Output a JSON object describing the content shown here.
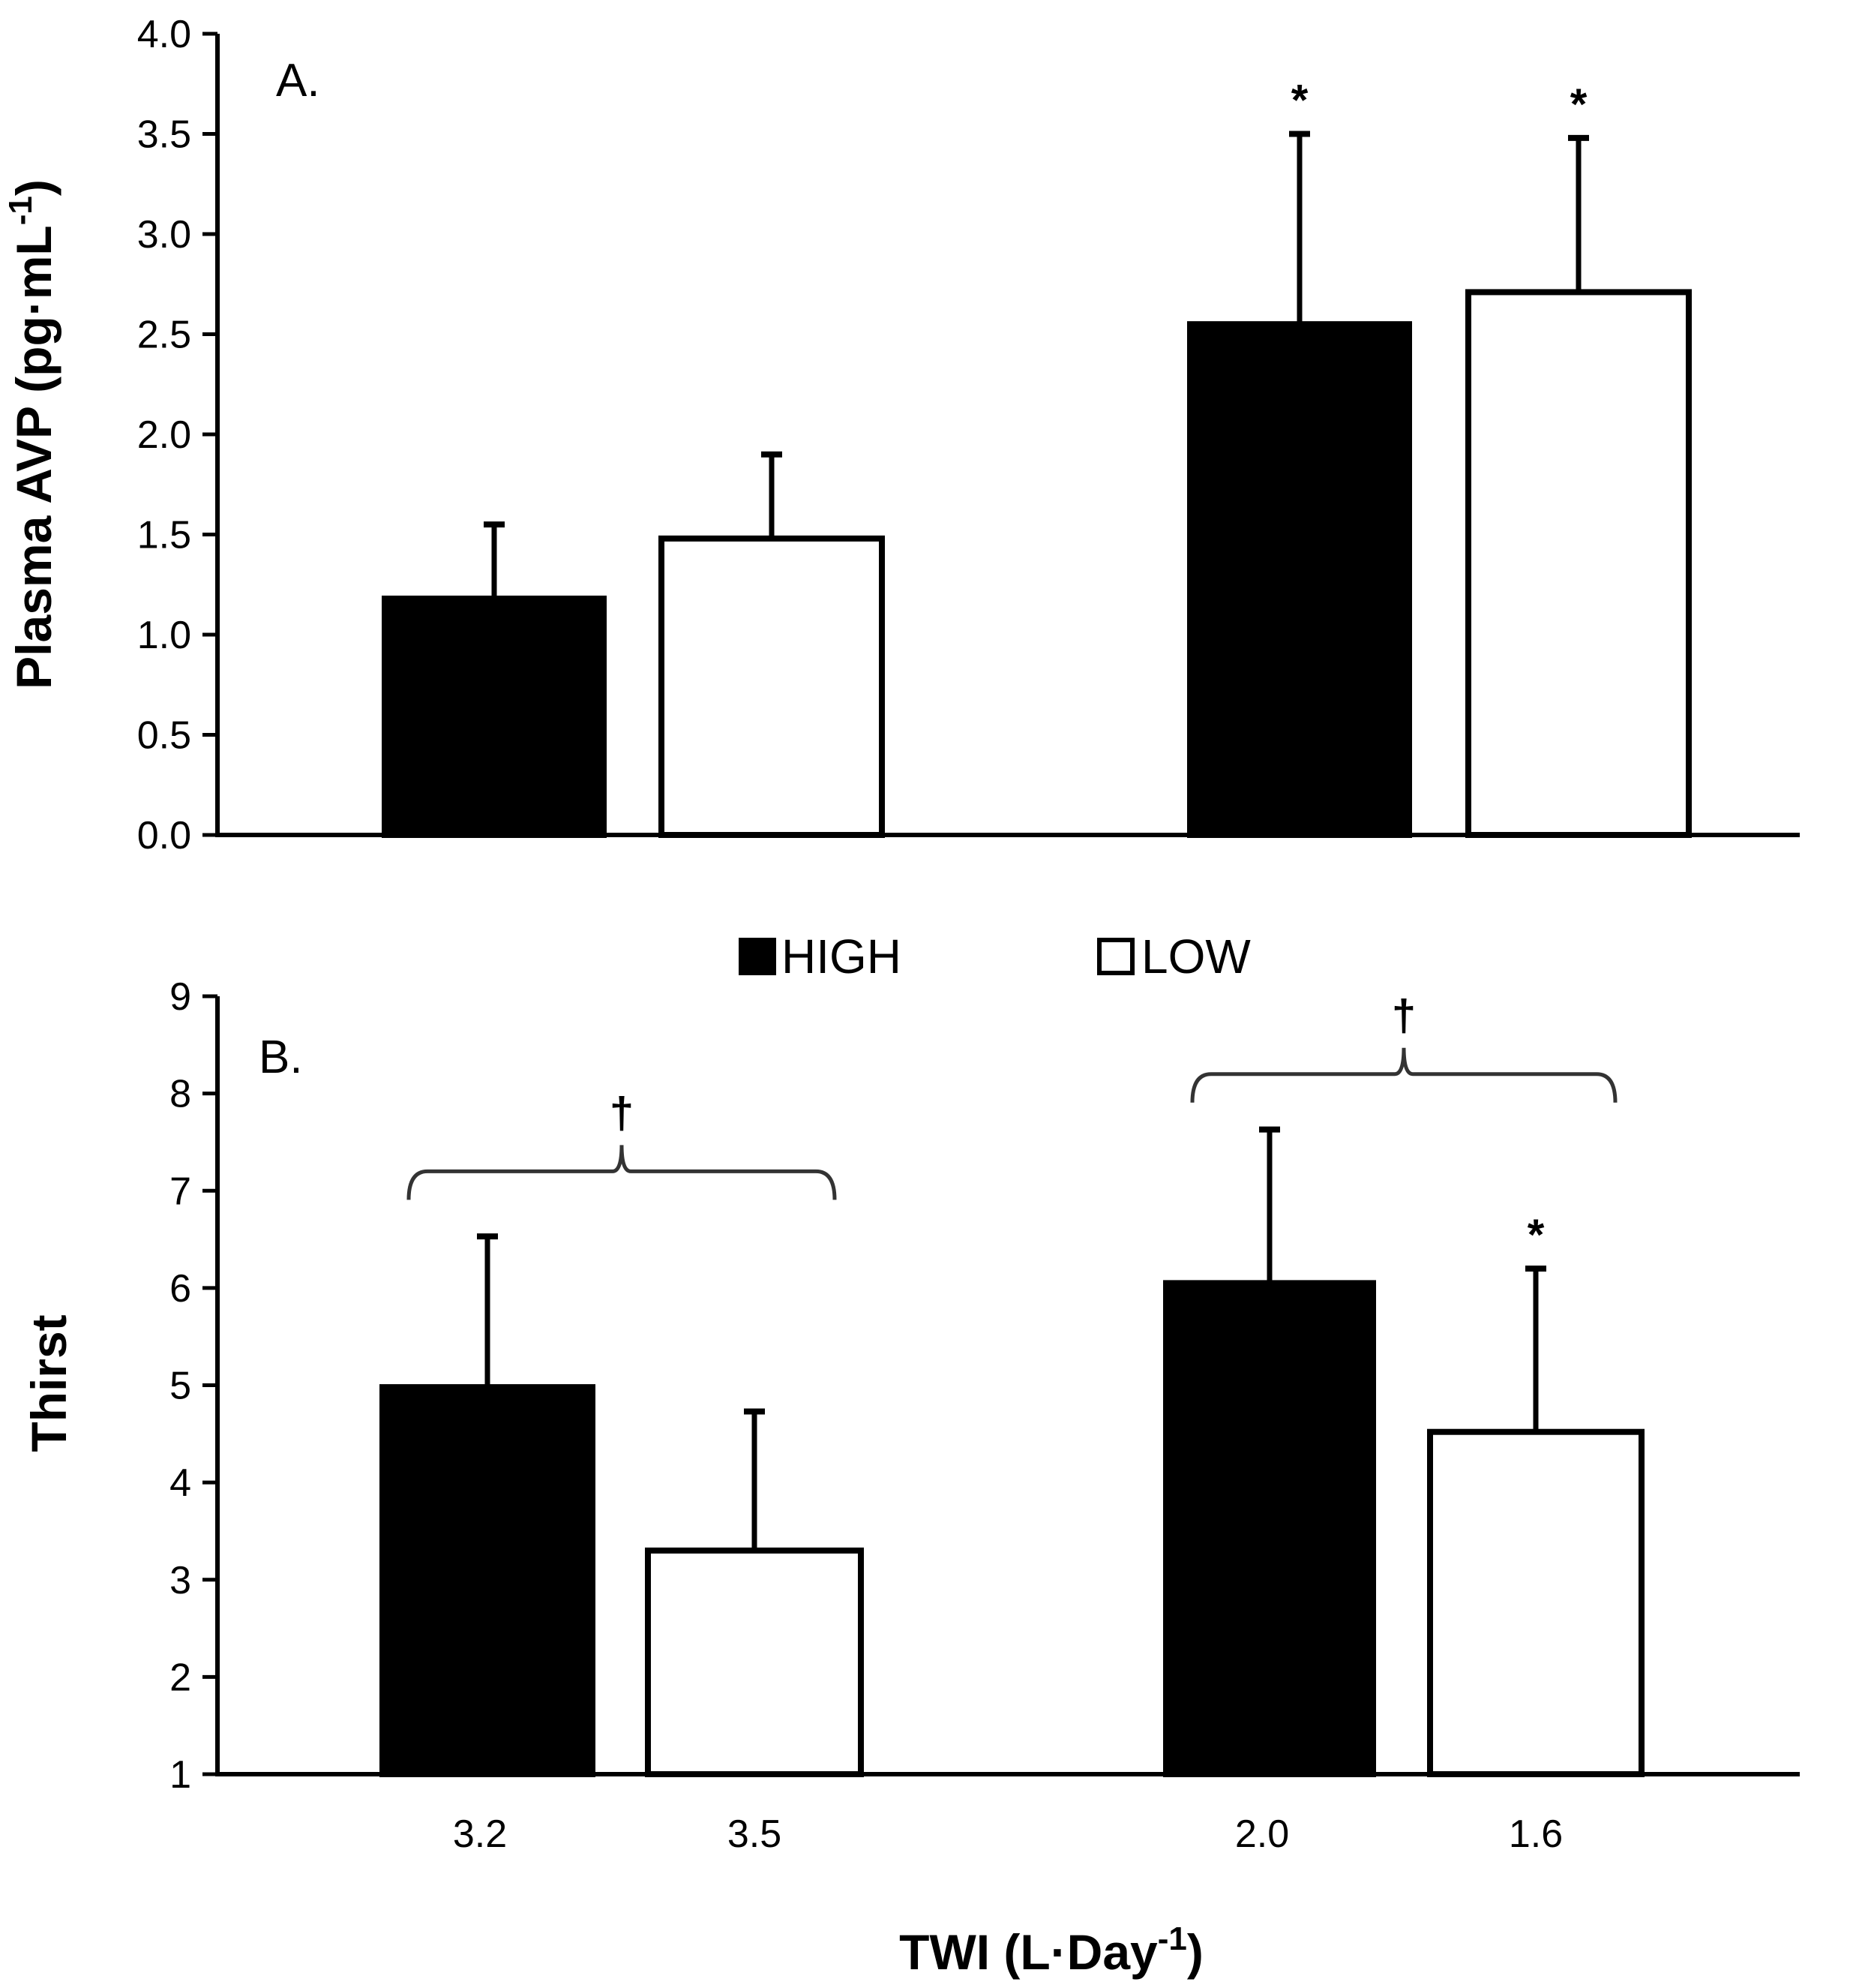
{
  "chart_data": [
    {
      "panel_label": "A.",
      "type": "bar",
      "ylabel": "Plasma AVP (pg·mL",
      "ylabel_sup": "-1",
      "ylabel_end": ")",
      "ylim": [
        0,
        4.0
      ],
      "yticks": [
        "0.0",
        "0.5",
        "1.0",
        "1.5",
        "2.0",
        "2.5",
        "3.0",
        "3.5",
        "4.0"
      ],
      "ytick_values": [
        0,
        0.5,
        1.0,
        1.5,
        2.0,
        2.5,
        3.0,
        3.5,
        4.0
      ],
      "bars": [
        {
          "series": "HIGH",
          "value": 1.18,
          "error": 0.37,
          "marker": ""
        },
        {
          "series": "LOW",
          "value": 1.48,
          "error": 0.42,
          "marker": ""
        },
        {
          "series": "HIGH",
          "value": 2.55,
          "error": 0.95,
          "marker": "*"
        },
        {
          "series": "LOW",
          "value": 2.71,
          "error": 0.77,
          "marker": "*"
        }
      ],
      "brackets": []
    },
    {
      "panel_label": "B.",
      "type": "bar",
      "ylabel": "Thirst",
      "ylim": [
        1,
        9
      ],
      "yticks": [
        "1",
        "2",
        "3",
        "4",
        "5",
        "6",
        "7",
        "8",
        "9"
      ],
      "ytick_values": [
        1,
        2,
        3,
        4,
        5,
        6,
        7,
        8,
        9
      ],
      "bars": [
        {
          "series": "HIGH",
          "value": 4.98,
          "error": 1.55,
          "marker": ""
        },
        {
          "series": "LOW",
          "value": 3.3,
          "error": 1.43,
          "marker": ""
        },
        {
          "series": "HIGH",
          "value": 6.05,
          "error": 1.58,
          "marker": ""
        },
        {
          "series": "LOW",
          "value": 4.52,
          "error": 1.68,
          "marker": "*"
        }
      ],
      "brackets": [
        {
          "from_bar": 0,
          "to_bar": 1,
          "level": 7.2,
          "marker": "†"
        },
        {
          "from_bar": 2,
          "to_bar": 3,
          "level": 8.2,
          "marker": "†"
        }
      ],
      "xticks": [
        "3.2",
        "3.5",
        "2.0",
        "1.6"
      ],
      "xlabel": "TWI (L·Day",
      "xlabel_sup": "-1",
      "xlabel_end": ")"
    }
  ],
  "legend": [
    {
      "label": "HIGH",
      "color": "#000000"
    },
    {
      "label": "LOW",
      "color": "#ffffff"
    }
  ]
}
